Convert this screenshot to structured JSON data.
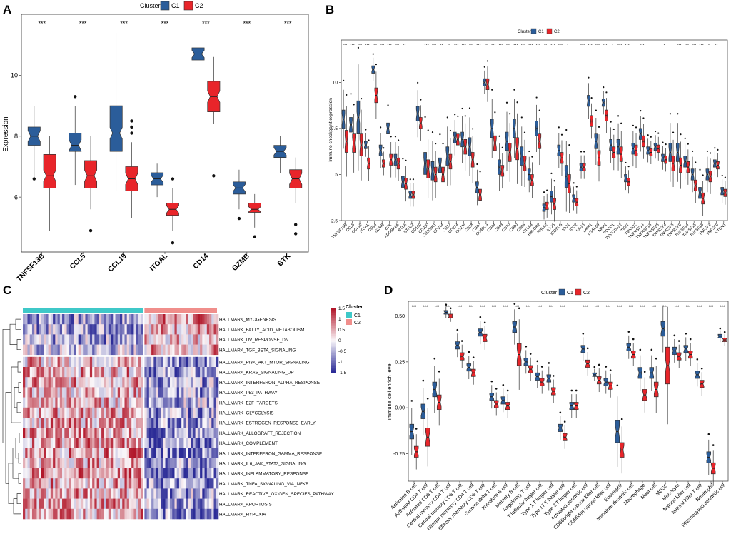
{
  "figure_title": "Multi-panel immune figure",
  "colors": {
    "c1": "#2b5d9a",
    "c2": "#e8252a",
    "c1_bar": "#3fc8c8",
    "c2_bar": "#f08e8b",
    "heat_high": "#b2182b",
    "heat_low": "#2c2c97"
  },
  "panels": {
    "A": {
      "label": "A",
      "legend_title": "Cluster",
      "legend_c1": "C1",
      "legend_c2": "C2",
      "ylabel": "Expression"
    },
    "B": {
      "label": "B",
      "legend_title": "Cluster",
      "legend_c1": "C1",
      "legend_c2": "C2",
      "ylabel": "Immune checkpoint expression"
    },
    "C": {
      "label": "C",
      "legend_title": "Cluster",
      "legend_c1": "C1",
      "legend_c2": "C2"
    },
    "D": {
      "label": "D",
      "legend_title": "Cluster",
      "legend_c1": "C1",
      "legend_c2": "C2",
      "ylabel": "Immune cell enrich level"
    }
  },
  "chart_data": [
    {
      "panel": "A",
      "type": "boxplot",
      "title": "",
      "xlabel": "",
      "ylabel": "Expression",
      "ylim": [
        4.2,
        12.0
      ],
      "yticks": [
        6,
        8,
        10
      ],
      "categories": [
        "TNFSF13B",
        "CCL5",
        "CCL19",
        "ITGAL",
        "CD14",
        "GZMB",
        "BTK"
      ],
      "significance": [
        "***",
        "***",
        "***",
        "***",
        "***",
        "***",
        "***"
      ],
      "series": [
        {
          "name": "C1",
          "boxes": [
            {
              "min": 6.6,
              "q1": 7.7,
              "median": 8.0,
              "q3": 8.3,
              "max": 9.0,
              "outliers": [
                6.6
              ]
            },
            {
              "min": 6.4,
              "q1": 7.5,
              "median": 7.7,
              "q3": 8.1,
              "max": 9.0,
              "outliers": [
                9.3
              ]
            },
            {
              "min": 6.2,
              "q1": 7.5,
              "median": 8.1,
              "q3": 9.0,
              "max": 11.4,
              "outliers": []
            },
            {
              "min": 6.0,
              "q1": 6.4,
              "median": 6.6,
              "q3": 6.8,
              "max": 7.1,
              "outliers": []
            },
            {
              "min": 9.8,
              "q1": 10.5,
              "median": 10.7,
              "q3": 10.9,
              "max": 11.3,
              "outliers": []
            },
            {
              "min": 5.6,
              "q1": 6.1,
              "median": 6.3,
              "q3": 6.5,
              "max": 6.9,
              "outliers": [
                5.3
              ]
            },
            {
              "min": 6.8,
              "q1": 7.3,
              "median": 7.5,
              "q3": 7.7,
              "max": 8.0,
              "outliers": []
            }
          ]
        },
        {
          "name": "C2",
          "boxes": [
            {
              "min": 4.9,
              "q1": 6.3,
              "median": 6.7,
              "q3": 7.4,
              "max": 8.0,
              "outliers": []
            },
            {
              "min": 5.6,
              "q1": 6.3,
              "median": 6.7,
              "q3": 7.2,
              "max": 8.0,
              "outliers": [
                4.9
              ]
            },
            {
              "min": 5.3,
              "q1": 6.2,
              "median": 6.6,
              "q3": 7.0,
              "max": 7.8,
              "outliers": [
                8.5,
                8.3,
                8.1
              ]
            },
            {
              "min": 4.9,
              "q1": 5.4,
              "median": 5.6,
              "q3": 5.8,
              "max": 6.3,
              "outliers": [
                6.6,
                4.5
              ]
            },
            {
              "min": 8.4,
              "q1": 8.8,
              "median": 9.3,
              "q3": 9.8,
              "max": 10.6,
              "outliers": [
                6.7
              ]
            },
            {
              "min": 5.0,
              "q1": 5.5,
              "median": 5.6,
              "q3": 5.8,
              "max": 6.1,
              "outliers": [
                4.7
              ]
            },
            {
              "min": 5.8,
              "q1": 6.3,
              "median": 6.6,
              "q3": 6.9,
              "max": 7.3,
              "outliers": [
                5.1,
                4.8
              ]
            }
          ]
        }
      ]
    },
    {
      "panel": "B",
      "type": "boxplot",
      "title": "",
      "xlabel": "",
      "ylabel": "Immune checkpoint expression",
      "ylim": [
        2.5,
        12.3
      ],
      "yticks": [
        2.5,
        5.0,
        7.5,
        10.0
      ],
      "categories": [
        "TNFSF18B",
        "CCL5",
        "CCL19",
        "ITGAL",
        "CD14",
        "GZMB",
        "BTK",
        "ADORA2A",
        "BTLA",
        "BTNL2",
        "CD160",
        "CD200",
        "CD200R1",
        "CD244",
        "CD27",
        "CD274",
        "CD276",
        "CD28",
        "CD40",
        "CD40LG",
        "CD44",
        "CD48",
        "CD70",
        "CD80",
        "CD86",
        "CTLA4",
        "HAVCR2",
        "HHLA2",
        "ICOS",
        "ICOSLG",
        "IDO1",
        "IDO2",
        "LAG3",
        "LAIR1",
        "LGALS9",
        "NRP1",
        "PDCD1",
        "PDCD1LG2",
        "TIGIT",
        "TMIGD2",
        "TNFRSF14",
        "TNFRSF18",
        "TNFRSF25",
        "TNFRSF4",
        "TNFRSF8",
        "TNFRSF9",
        "TNFSF14",
        "TNFSF15",
        "TNFSF18",
        "TNFSF4",
        "TNFSF9",
        "VTCN1"
      ],
      "significance": [
        "***",
        "***",
        "***",
        "***",
        "***",
        "***",
        "***",
        "***",
        "**",
        "",
        "",
        "***",
        "***",
        "**",
        "**",
        "***",
        "***",
        "***",
        "***",
        "**",
        "***",
        "***",
        "***",
        "***",
        "***",
        "***",
        "***",
        "**",
        "***",
        "***",
        "*",
        "",
        "***",
        "***",
        "***",
        "***",
        "*",
        "***",
        "***",
        "",
        "***",
        "",
        "",
        "*",
        "",
        "***",
        "***",
        "***",
        "***",
        "*",
        "**",
        ""
      ],
      "series": [
        {
          "name": "C1",
          "median": [
            8.0,
            7.7,
            8.1,
            6.6,
            10.7,
            6.3,
            7.5,
            5.8,
            4.6,
            3.9,
            8.3,
            5.6,
            5.2,
            5.5,
            6.0,
            7.0,
            6.9,
            6.5,
            4.3,
            10.0,
            7.5,
            5.4,
            6.8,
            7.5,
            6.0,
            5.0,
            7.5,
            3.2,
            3.8,
            6.3,
            4.9,
            3.7,
            5.4,
            9.0,
            6.8,
            8.9,
            6.6,
            6.5,
            4.8,
            6.4,
            7.2,
            6.3,
            6.5,
            5.9,
            6.2,
            6.2,
            5.7,
            5.0,
            4.0,
            5.0,
            5.6,
            4.1
          ],
          "spread": [
            0.5,
            0.4,
            0.9,
            0.2,
            0.2,
            0.3,
            0.3,
            0.3,
            0.3,
            0.2,
            0.4,
            0.6,
            0.5,
            0.4,
            0.5,
            0.3,
            0.4,
            0.5,
            0.3,
            0.2,
            0.5,
            0.4,
            0.5,
            0.5,
            0.5,
            0.3,
            0.4,
            0.2,
            0.3,
            0.3,
            0.6,
            0.2,
            0.2,
            0.3,
            0.4,
            0.2,
            0.3,
            0.4,
            0.2,
            0.3,
            0.3,
            0.2,
            0.2,
            0.2,
            0.5,
            0.5,
            0.3,
            0.3,
            0.3,
            0.3,
            0.2,
            0.2
          ]
        },
        {
          "name": "C2",
          "median": [
            6.8,
            6.7,
            6.6,
            5.6,
            9.3,
            5.6,
            5.8,
            5.6,
            4.5,
            3.9,
            7.8,
            5.3,
            5.0,
            5.0,
            5.7,
            6.9,
            6.5,
            5.8,
            3.9,
            9.9,
            6.7,
            5.2,
            6.2,
            6.4,
            5.6,
            4.7,
            6.8,
            3.3,
            3.4,
            5.9,
            4.5,
            3.5,
            5.4,
            7.9,
            5.9,
            8.2,
            6.2,
            6.1,
            4.6,
            6.3,
            6.8,
            6.2,
            6.4,
            5.8,
            5.6,
            5.5,
            5.4,
            4.4,
            3.7,
            4.9,
            5.5,
            4.0
          ],
          "spread": [
            0.6,
            0.5,
            0.6,
            0.3,
            0.4,
            0.2,
            0.3,
            0.3,
            0.3,
            0.2,
            0.3,
            0.5,
            0.4,
            0.4,
            0.4,
            0.3,
            0.4,
            0.4,
            0.3,
            0.3,
            0.4,
            0.3,
            0.5,
            0.6,
            0.4,
            0.3,
            0.4,
            0.2,
            0.3,
            0.3,
            0.5,
            0.2,
            0.2,
            0.3,
            0.4,
            0.3,
            0.3,
            0.4,
            0.2,
            0.3,
            0.3,
            0.2,
            0.2,
            0.2,
            0.4,
            0.4,
            0.3,
            0.3,
            0.3,
            0.3,
            0.2,
            0.2
          ]
        }
      ]
    },
    {
      "panel": "C",
      "type": "heatmap",
      "legend_scale": {
        "min": -1.5,
        "max": 1.5,
        "ticks": [
          "1.5",
          "1",
          "0.5",
          "0",
          "-0.5",
          "-1",
          "-1.5"
        ]
      },
      "column_groups": [
        {
          "name": "C1",
          "count": 52
        },
        {
          "name": "C2",
          "count": 32
        }
      ],
      "rows": [
        {
          "name": "HALLMARK_MYOGENESIS",
          "c1_mean": -0.6,
          "c2_mean": 0.6
        },
        {
          "name": "HALLMARK_FATTY_ACID_METABOLISM",
          "c1_mean": -0.5,
          "c2_mean": 0.5
        },
        {
          "name": "HALLMARK_UV_RESPONSE_DN",
          "c1_mean": -0.6,
          "c2_mean": 0.4
        },
        {
          "name": "HALLMARK_TGF_BETA_SIGNALING",
          "c1_mean": -0.4,
          "c2_mean": 0.5
        },
        {
          "name": "HALLMARK_PI3K_AKT_MTOR_SIGNALING",
          "c1_mean": 0.4,
          "c2_mean": -0.6
        },
        {
          "name": "HALLMARK_KRAS_SIGNALING_UP",
          "c1_mean": 0.5,
          "c2_mean": -0.7
        },
        {
          "name": "HALLMARK_INTERFERON_ALPHA_RESPONSE",
          "c1_mean": 0.5,
          "c2_mean": -0.6
        },
        {
          "name": "HALLMARK_P53_PATHWAY",
          "c1_mean": 0.4,
          "c2_mean": -0.6
        },
        {
          "name": "HALLMARK_E2F_TARGETS",
          "c1_mean": 0.4,
          "c2_mean": -0.5
        },
        {
          "name": "HALLMARK_GLYCOLYSIS",
          "c1_mean": 0.5,
          "c2_mean": -0.6
        },
        {
          "name": "HALLMARK_ESTROGEN_RESPONSE_EARLY",
          "c1_mean": 0.5,
          "c2_mean": -0.6
        },
        {
          "name": "HALLMARK_ALLOGRAFT_REJECTION",
          "c1_mean": 0.6,
          "c2_mean": -0.8
        },
        {
          "name": "HALLMARK_COMPLEMENT",
          "c1_mean": 0.6,
          "c2_mean": -0.8
        },
        {
          "name": "HALLMARK_INTERFERON_GAMMA_RESPONSE",
          "c1_mean": 0.6,
          "c2_mean": -0.8
        },
        {
          "name": "HALLMARK_IL6_JAK_STAT3_SIGNALING",
          "c1_mean": 0.5,
          "c2_mean": -0.7
        },
        {
          "name": "HALLMARK_INFLAMMATORY_RESPONSE",
          "c1_mean": 0.6,
          "c2_mean": -0.8
        },
        {
          "name": "HALLMARK_TNFA_SIGNALING_VIA_NFKB",
          "c1_mean": 0.5,
          "c2_mean": -0.7
        },
        {
          "name": "HALLMARK_REACTIVE_OXIGEN_SPECIES_PATHWAY",
          "c1_mean": 0.5,
          "c2_mean": -0.6
        },
        {
          "name": "HALLMARK_APOPTOSIS",
          "c1_mean": 0.5,
          "c2_mean": -0.6
        },
        {
          "name": "HALLMARK_HYPOXIA",
          "c1_mean": 0.5,
          "c2_mean": -0.7
        }
      ]
    },
    {
      "panel": "D",
      "type": "boxplot",
      "title": "",
      "xlabel": "",
      "ylabel": "Immune cell enrich level",
      "ylim": [
        -0.4,
        0.58
      ],
      "yticks": [
        -0.25,
        0.0,
        0.25,
        0.5
      ],
      "yticklabels": [
        "-0.25",
        "0.00",
        "0.25",
        "0.50"
      ],
      "categories": [
        "Activated B cell",
        "Activated CD4 T cell",
        "Activated CD8 T cell",
        "Central memory CD4 T cell",
        "Central memory CD8 T cell",
        "Effector memeory CD4 T cell",
        "Effector memeory CD8 T cell",
        "Gamma delta T cell",
        "Immature  B cell",
        "Memory B cell",
        "Regulatory T cell",
        "T follicular helper cell",
        "Type 1 T helper cell",
        "Type 17 T helper cell",
        "Type 2 T helper cell",
        "Activated dendritic cell",
        "CD56bright natural killer cell",
        "CD56dim natural killer cell",
        "Eosinophil",
        "Immature dendritic cell",
        "Macrophage",
        "Mast cell",
        "MDSC",
        "Monocyte",
        "Natural killer cell",
        "Natural killer T cell",
        "Neutrophil",
        "Plasmacytoid dendritic cell"
      ],
      "significance": [
        "***",
        "***",
        "***",
        "***",
        "***",
        "***",
        "***",
        "***",
        "***",
        "***",
        "***",
        "***",
        "***",
        "***",
        "",
        "***",
        "***",
        "***",
        "***",
        "***",
        "***",
        "***",
        "***",
        "***",
        "***",
        "***",
        "***",
        "***"
      ],
      "series": [
        {
          "name": "C1",
          "median": [
            -0.13,
            -0.02,
            0.1,
            0.52,
            0.34,
            0.22,
            0.41,
            0.06,
            0.04,
            0.44,
            0.25,
            0.17,
            0.16,
            -0.11,
            0.01,
            0.32,
            0.18,
            0.14,
            -0.13,
            0.33,
            0.19,
            0.19,
            0.43,
            0.31,
            0.32,
            0.18,
            -0.27,
            0.39
          ],
          "spread": [
            0.04,
            0.04,
            0.04,
            0.01,
            0.02,
            0.02,
            0.02,
            0.02,
            0.02,
            0.03,
            0.02,
            0.02,
            0.02,
            0.02,
            0.02,
            0.02,
            0.01,
            0.02,
            0.06,
            0.02,
            0.03,
            0.03,
            0.04,
            0.02,
            0.02,
            0.02,
            0.03,
            0.01
          ]
        },
        {
          "name": "C2",
          "median": [
            -0.24,
            -0.16,
            0.03,
            0.5,
            0.28,
            0.19,
            0.38,
            0.02,
            0.01,
            0.29,
            0.21,
            0.14,
            0.09,
            -0.16,
            0.01,
            0.24,
            0.15,
            0.12,
            -0.23,
            0.29,
            0.07,
            0.1,
            0.23,
            0.28,
            0.29,
            0.13,
            -0.33,
            0.37
          ],
          "spread": [
            0.03,
            0.05,
            0.04,
            0.01,
            0.02,
            0.02,
            0.02,
            0.02,
            0.02,
            0.06,
            0.02,
            0.02,
            0.02,
            0.02,
            0.02,
            0.02,
            0.02,
            0.02,
            0.04,
            0.02,
            0.03,
            0.04,
            0.1,
            0.02,
            0.02,
            0.02,
            0.03,
            0.01
          ]
        }
      ]
    }
  ]
}
